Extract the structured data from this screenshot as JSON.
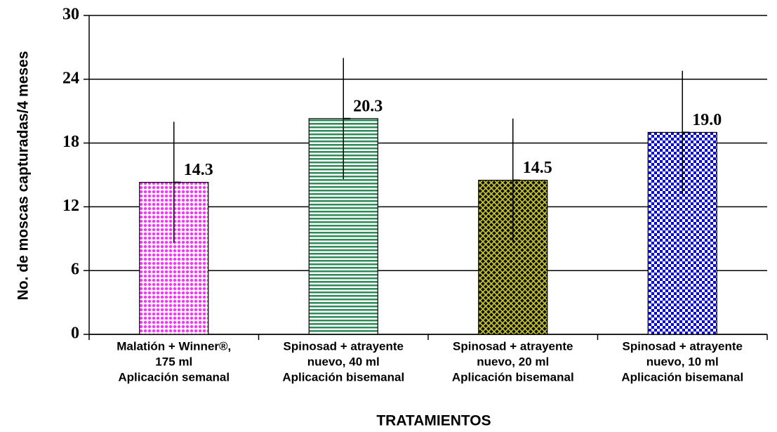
{
  "chart_data": {
    "type": "bar",
    "x_label": "TRATAMIENTOS",
    "y_label": "No. de moscas capturadas/4 meses",
    "categories": [
      [
        "Malatión + Winner®,",
        "175 ml",
        "Aplicación semanal"
      ],
      [
        "Spinosad + atrayente",
        "nuevo, 40 ml",
        "Aplicación bisemanal"
      ],
      [
        "Spinosad + atrayente",
        "nuevo, 20 ml",
        "Aplicación bisemanal"
      ],
      [
        "Spinosad + atrayente",
        "nuevo, 10 ml",
        "Aplicación bisemanal"
      ]
    ],
    "values": [
      14.3,
      20.3,
      14.5,
      19.0
    ],
    "value_labels": [
      "14.3",
      "20.3",
      "14.5",
      "19.0"
    ],
    "errors": [
      5.7,
      5.7,
      5.8,
      5.8
    ],
    "colors": [
      "#ff33ff",
      "#2e8b57",
      "#c8c832",
      "#0000cc"
    ],
    "ylim": [
      0,
      30
    ],
    "yticks": [
      0,
      6,
      12,
      18,
      24,
      30
    ],
    "grid": true
  }
}
